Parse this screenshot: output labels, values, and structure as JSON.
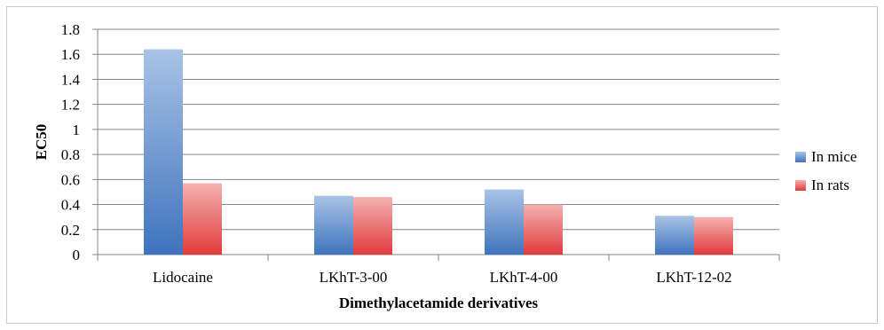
{
  "chart_data": {
    "type": "bar",
    "title": "",
    "xlabel": "Dimethylacetamide derivatives",
    "ylabel": "EC50",
    "categories": [
      "Lidocaine",
      "LKhT-3-00",
      "LKhT-4-00",
      "LKhT-12-02"
    ],
    "series": [
      {
        "name": "In mice",
        "values": [
          1.64,
          0.47,
          0.52,
          0.31
        ],
        "color": "#4f81bd"
      },
      {
        "name": "In rats",
        "values": [
          0.57,
          0.46,
          0.4,
          0.3
        ],
        "color": "#e04848"
      }
    ],
    "ylim": [
      0,
      1.8
    ],
    "yticks": [
      "0",
      "0.2",
      "0.4",
      "0.6",
      "0.8",
      "1",
      "1.2",
      "1.4",
      "1.6",
      "1.8"
    ],
    "grid": true,
    "legend_position": "right"
  }
}
